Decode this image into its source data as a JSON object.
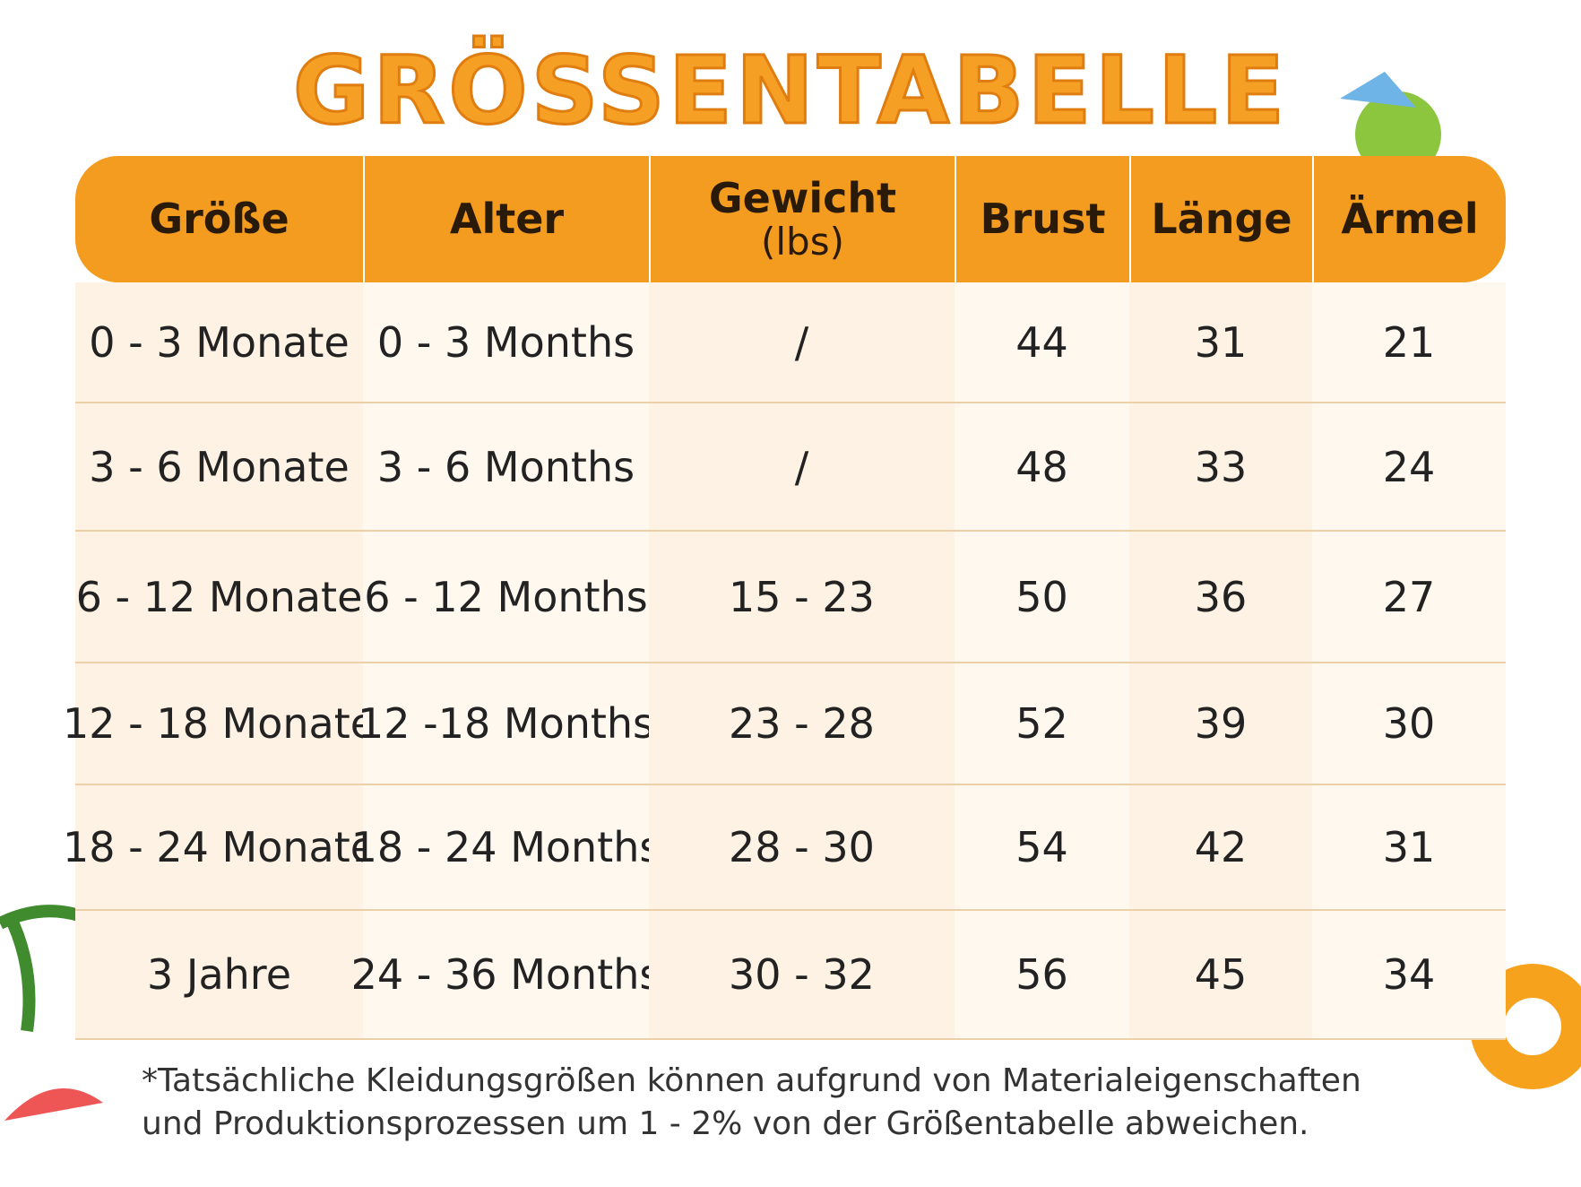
{
  "header": {
    "title": "GRÖSSENTABELLE"
  },
  "table": {
    "columns": [
      "Größe",
      "Alter",
      "Gewicht",
      "Brust",
      "Länge",
      "Ärmel"
    ],
    "weight_unit": "(lbs)",
    "rows": [
      [
        "0 - 3 Monate",
        "0 - 3 Months",
        "/",
        44,
        31,
        21
      ],
      [
        "3 - 6 Monate",
        "3 - 6 Months",
        "/",
        48,
        33,
        24
      ],
      [
        "6 - 12 Monate",
        "6 - 12 Months",
        "15 - 23",
        50,
        36,
        27
      ],
      [
        "12 - 18 Monate",
        "12 -18 Months",
        "23 - 28",
        52,
        39,
        30
      ],
      [
        "18 - 24 Monate",
        "18 - 24 Months",
        "28 - 30",
        54,
        42,
        31
      ],
      [
        "3 Jahre",
        "24 - 36 Months",
        "30 - 32",
        56,
        45,
        34
      ]
    ]
  },
  "footnote": {
    "lines": [
      "*Tatsächliche Kleidungsgrößen können aufgrund von Materialeigenschaften",
      "und Produktionsprozessen um 1 - 2% von der Größentabelle abweichen."
    ]
  }
}
